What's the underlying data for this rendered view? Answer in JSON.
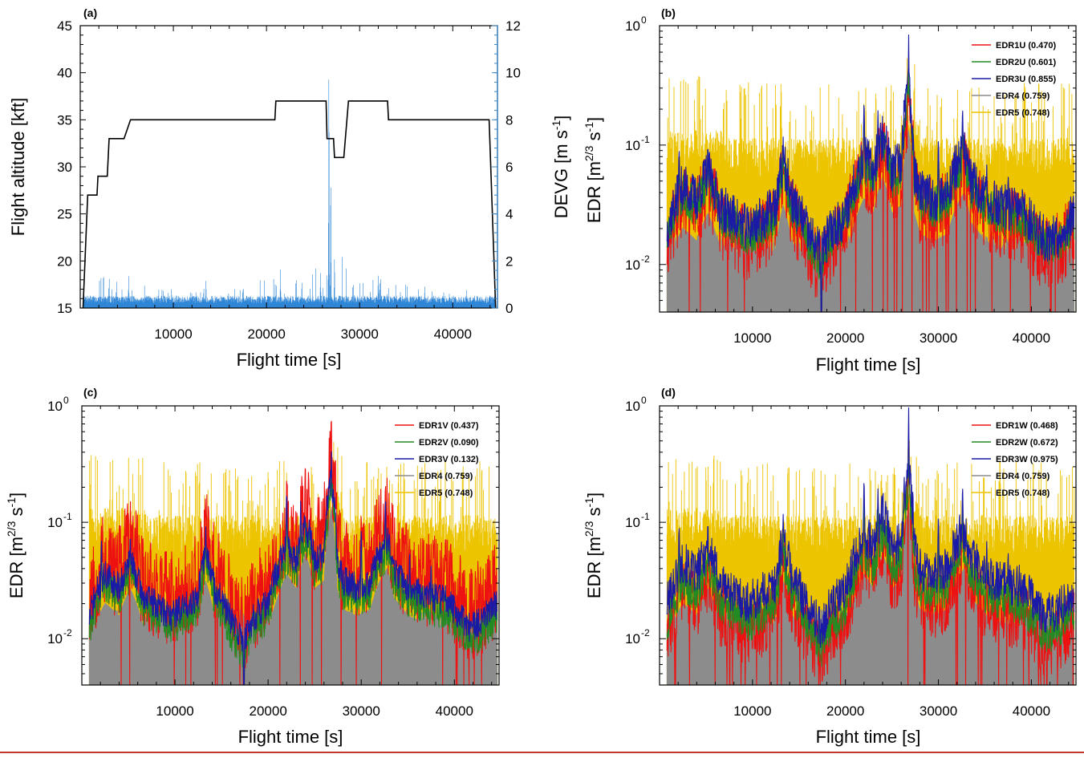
{
  "colors": {
    "altitude": "#000000",
    "devg": "#2f86d6",
    "devg_axis": "#3b86c6",
    "edr1": "#ee1111",
    "edr2": "#228b22",
    "edr3": "#1a1aa6",
    "edr4": "#8c8c8c",
    "edr5": "#ecc400"
  },
  "chart_data": [
    {
      "panel": "(a)",
      "type": "line",
      "xlabel": "Flight time [s]",
      "ylabel_left": "Flight altitude [kft]",
      "ylabel_right_main": "DEVG [m s",
      "ylabel_right_sup": "-1",
      "ylabel_right_end": "]",
      "xlim": [
        0,
        44800
      ],
      "ylim_left": [
        15,
        45
      ],
      "ylim_right": [
        0,
        12
      ],
      "xticks": [
        10000,
        20000,
        30000,
        40000
      ],
      "xtick_labels": [
        "10000",
        "20000",
        "30000",
        "40000"
      ],
      "yticks_left": [
        15,
        20,
        25,
        30,
        35,
        40,
        45
      ],
      "ytick_labels_left": [
        "15",
        "20",
        "25",
        "30",
        "35",
        "40",
        "45"
      ],
      "yticks_right": [
        0,
        2,
        4,
        6,
        8,
        10,
        12
      ],
      "ytick_labels_right": [
        "0",
        "2",
        "4",
        "6",
        "8",
        "10",
        "12"
      ],
      "series": [
        {
          "name": "Flight altitude",
          "axis": "left",
          "points": [
            [
              300,
              15
            ],
            [
              800,
              27
            ],
            [
              1800,
              27
            ],
            [
              1900,
              29
            ],
            [
              2900,
              29
            ],
            [
              3100,
              33
            ],
            [
              4700,
              33
            ],
            [
              5400,
              35
            ],
            [
              20900,
              35
            ],
            [
              21000,
              37
            ],
            [
              26400,
              37
            ],
            [
              26500,
              33
            ],
            [
              27200,
              33
            ],
            [
              27300,
              31
            ],
            [
              28300,
              31
            ],
            [
              28800,
              37
            ],
            [
              33000,
              37
            ],
            [
              33100,
              35
            ],
            [
              43900,
              35
            ],
            [
              44600,
              15
            ]
          ]
        },
        {
          "name": "DEVG",
          "axis": "right",
          "baseline": 0.2,
          "noise": 0.2,
          "bursts": [
            [
              2500,
              1.6
            ],
            [
              5200,
              1.3
            ],
            [
              9800,
              0.9
            ],
            [
              13500,
              1.1
            ],
            [
              17500,
              0.9
            ],
            [
              21500,
              1.5
            ],
            [
              23800,
              1.2
            ],
            [
              25800,
              1.5
            ],
            [
              26700,
              11.6
            ],
            [
              26900,
              6.3
            ],
            [
              27300,
              2.4
            ],
            [
              32000,
              1.5
            ],
            [
              37000,
              0.8
            ],
            [
              41500,
              0.6
            ]
          ],
          "envelope": [
            [
              300,
              1.2
            ],
            [
              4000,
              0.8
            ],
            [
              10000,
              0.55
            ],
            [
              15000,
              0.6
            ],
            [
              20000,
              0.9
            ],
            [
              24000,
              1.1
            ],
            [
              26000,
              1.5
            ],
            [
              27000,
              2.8
            ],
            [
              29000,
              0.9
            ],
            [
              33000,
              0.9
            ],
            [
              38000,
              0.5
            ],
            [
              44000,
              0.35
            ]
          ]
        }
      ]
    },
    {
      "panel": "(b)",
      "type": "line",
      "yscale": "log",
      "xlabel": "Flight time [s]",
      "ylabel_main": "EDR [m",
      "ylabel_sup1": "2/3",
      "ylabel_mid": " s",
      "ylabel_sup2": "-1",
      "ylabel_end": "]",
      "xlim": [
        0,
        44800
      ],
      "ylim": [
        0.004,
        1
      ],
      "xticks": [
        10000,
        20000,
        30000,
        40000
      ],
      "xtick_labels": [
        "10000",
        "20000",
        "30000",
        "40000"
      ],
      "yticks": [
        0.01,
        0.1,
        1
      ],
      "ytick_bases": [
        "10",
        "10",
        "10"
      ],
      "ytick_exps": [
        "-2",
        "-1",
        "0"
      ],
      "legend_position": "top-right",
      "peak": 0.85,
      "dip_at": 17400,
      "series": [
        {
          "name": "EDR1U (0.470)",
          "key": "edr1",
          "scale": 0.74,
          "wiggle": 0.24,
          "seed": 11
        },
        {
          "name": "EDR2U (0.601)",
          "key": "edr2",
          "scale": 0.86,
          "wiggle": 0.13,
          "seed": 23
        },
        {
          "name": "EDR3U (0.855)",
          "key": "edr3",
          "scale": 1.0,
          "wiggle": 0.15,
          "seed": 37
        },
        {
          "name": "EDR4 (0.759)",
          "key": "edr4"
        },
        {
          "name": "EDR5 (0.748)",
          "key": "edr5"
        }
      ]
    },
    {
      "panel": "(c)",
      "type": "line",
      "yscale": "log",
      "xlabel": "Flight time [s]",
      "ylabel_main": "EDR [m",
      "ylabel_sup1": "2/3",
      "ylabel_mid": " s",
      "ylabel_sup2": "-1",
      "ylabel_end": "]",
      "xlim": [
        0,
        44800
      ],
      "ylim": [
        0.004,
        1
      ],
      "xticks": [
        10000,
        20000,
        30000,
        40000
      ],
      "xtick_labels": [
        "10000",
        "20000",
        "30000",
        "40000"
      ],
      "yticks": [
        0.01,
        0.1,
        1
      ],
      "ytick_bases": [
        "10",
        "10",
        "10"
      ],
      "ytick_exps": [
        "-2",
        "-1",
        "0"
      ],
      "legend_position": "top-right",
      "peak": 0.75,
      "dip_at": 17400,
      "series": [
        {
          "name": "EDR1V (0.437)",
          "key": "edr1",
          "scale": 1.05,
          "wiggle": 0.32,
          "seed": 53
        },
        {
          "name": "EDR2V (0.090)",
          "key": "edr2",
          "scale": 0.62,
          "wiggle": 0.12,
          "seed": 61
        },
        {
          "name": "EDR3V (0.132)",
          "key": "edr3",
          "scale": 0.78,
          "wiggle": 0.1,
          "seed": 71
        },
        {
          "name": "EDR4 (0.759)",
          "key": "edr4"
        },
        {
          "name": "EDR5 (0.748)",
          "key": "edr5"
        }
      ]
    },
    {
      "panel": "(d)",
      "type": "line",
      "yscale": "log",
      "xlabel": "Flight time [s]",
      "ylabel_main": "EDR [m",
      "ylabel_sup1": "2/3",
      "ylabel_mid": " s",
      "ylabel_sup2": "-1",
      "ylabel_end": "]",
      "xlim": [
        0,
        44800
      ],
      "ylim": [
        0.004,
        1
      ],
      "xticks": [
        10000,
        20000,
        30000,
        40000
      ],
      "xtick_labels": [
        "10000",
        "20000",
        "30000",
        "40000"
      ],
      "yticks": [
        0.01,
        0.1,
        1
      ],
      "ytick_bases": [
        "10",
        "10",
        "10"
      ],
      "ytick_exps": [
        "-2",
        "-1",
        "0"
      ],
      "legend_position": "top-right",
      "peak": 0.98,
      "dip_at": null,
      "series": [
        {
          "name": "EDR1W (0.468)",
          "key": "edr1",
          "scale": 0.55,
          "wiggle": 0.22,
          "seed": 83
        },
        {
          "name": "EDR2W (0.672)",
          "key": "edr2",
          "scale": 0.68,
          "wiggle": 0.13,
          "seed": 97
        },
        {
          "name": "EDR3W (0.975)",
          "key": "edr3",
          "scale": 1.0,
          "wiggle": 0.14,
          "seed": 101
        },
        {
          "name": "EDR4 (0.759)",
          "key": "edr4"
        },
        {
          "name": "EDR5 (0.748)",
          "key": "edr5"
        }
      ]
    }
  ],
  "edr_profile": {
    "anchors": [
      [
        300,
        0.012
      ],
      [
        1500,
        0.03
      ],
      [
        2500,
        0.045
      ],
      [
        4000,
        0.035
      ],
      [
        5200,
        0.06
      ],
      [
        6500,
        0.03
      ],
      [
        8000,
        0.025
      ],
      [
        9500,
        0.02
      ],
      [
        11000,
        0.024
      ],
      [
        12500,
        0.03
      ],
      [
        13300,
        0.07
      ],
      [
        14200,
        0.035
      ],
      [
        16000,
        0.018
      ],
      [
        17400,
        0.012
      ],
      [
        18500,
        0.02
      ],
      [
        20000,
        0.025
      ],
      [
        21000,
        0.05
      ],
      [
        22000,
        0.08
      ],
      [
        23000,
        0.06
      ],
      [
        24000,
        0.12
      ],
      [
        25000,
        0.06
      ],
      [
        26000,
        0.07
      ],
      [
        26800,
        0.3
      ],
      [
        27400,
        0.06
      ],
      [
        28000,
        0.04
      ],
      [
        29500,
        0.035
      ],
      [
        31000,
        0.04
      ],
      [
        32000,
        0.07
      ],
      [
        32800,
        0.09
      ],
      [
        33500,
        0.05
      ],
      [
        35000,
        0.035
      ],
      [
        37000,
        0.03
      ],
      [
        39000,
        0.028
      ],
      [
        40500,
        0.02
      ],
      [
        41500,
        0.016
      ],
      [
        43000,
        0.018
      ],
      [
        44500,
        0.025
      ]
    ],
    "spikes": [
      [
        2100,
        0.1
      ],
      [
        5200,
        0.11
      ],
      [
        13300,
        0.12
      ],
      [
        22000,
        0.25
      ],
      [
        23500,
        0.2
      ],
      [
        24400,
        0.15
      ],
      [
        30000,
        0.12
      ],
      [
        32600,
        0.22
      ],
      [
        35200,
        0.07
      ],
      [
        37500,
        0.06
      ]
    ],
    "edr5_level": 0.07,
    "edr4_level": 0.02
  }
}
